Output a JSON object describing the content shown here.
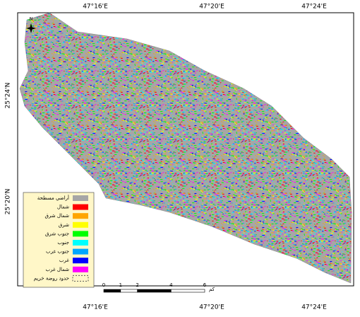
{
  "map": {
    "lon_labels": [
      "47°16'E",
      "47°20'E",
      "47°24'E"
    ],
    "lat_labels": [
      "25°24'N",
      "25°20'N"
    ],
    "north": "N",
    "legend": [
      {
        "label": "أراضي مسطحة",
        "color": "#a6a6a6"
      },
      {
        "label": "شمال",
        "color": "#ff0000"
      },
      {
        "label": "شمال شرق",
        "color": "#ffa500"
      },
      {
        "label": "شرق",
        "color": "#ffff00"
      },
      {
        "label": "جنوب شرق",
        "color": "#00ff00"
      },
      {
        "label": "جنوب",
        "color": "#00ffff"
      },
      {
        "label": "جنوب غرب",
        "color": "#00a6ff"
      },
      {
        "label": "غرب",
        "color": "#0000ff"
      },
      {
        "label": "شمال غرب",
        "color": "#ff00ff"
      },
      {
        "label": "حدود روضة خريم",
        "color": "#fff7c8"
      }
    ],
    "scale": {
      "ticks": [
        0,
        1,
        2,
        4,
        6
      ],
      "unit": "كم"
    }
  }
}
